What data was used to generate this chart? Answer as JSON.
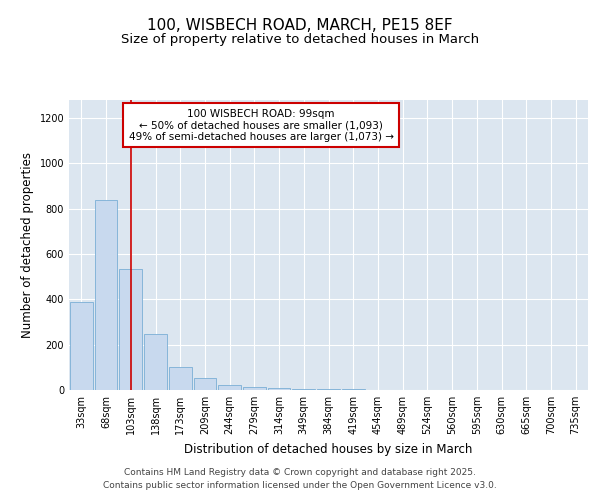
{
  "title_line1": "100, WISBECH ROAD, MARCH, PE15 8EF",
  "title_line2": "Size of property relative to detached houses in March",
  "xlabel": "Distribution of detached houses by size in March",
  "ylabel": "Number of detached properties",
  "bar_labels": [
    "33sqm",
    "68sqm",
    "103sqm",
    "138sqm",
    "173sqm",
    "209sqm",
    "244sqm",
    "279sqm",
    "314sqm",
    "349sqm",
    "384sqm",
    "419sqm",
    "454sqm",
    "489sqm",
    "524sqm",
    "560sqm",
    "595sqm",
    "630sqm",
    "665sqm",
    "700sqm",
    "735sqm"
  ],
  "bar_values": [
    390,
    840,
    535,
    248,
    100,
    55,
    20,
    15,
    8,
    5,
    4,
    3,
    2,
    2,
    1,
    1,
    1,
    1,
    1,
    1,
    1
  ],
  "bar_color": "#c8d9ee",
  "bar_edge_color": "#7aaed6",
  "vline_x": 2.0,
  "vline_color": "#cc0000",
  "annotation_text": "100 WISBECH ROAD: 99sqm\n← 50% of detached houses are smaller (1,093)\n49% of semi-detached houses are larger (1,073) →",
  "annotation_box_facecolor": "#ffffff",
  "annotation_box_edgecolor": "#cc0000",
  "ylim": [
    0,
    1280
  ],
  "yticks": [
    0,
    200,
    400,
    600,
    800,
    1000,
    1200
  ],
  "plot_bg_color": "#dce6f0",
  "fig_bg_color": "#ffffff",
  "footer_line1": "Contains HM Land Registry data © Crown copyright and database right 2025.",
  "footer_line2": "Contains public sector information licensed under the Open Government Licence v3.0.",
  "title_fontsize": 11,
  "subtitle_fontsize": 9.5,
  "axis_label_fontsize": 8.5,
  "tick_fontsize": 7,
  "annotation_fontsize": 7.5,
  "footer_fontsize": 6.5
}
